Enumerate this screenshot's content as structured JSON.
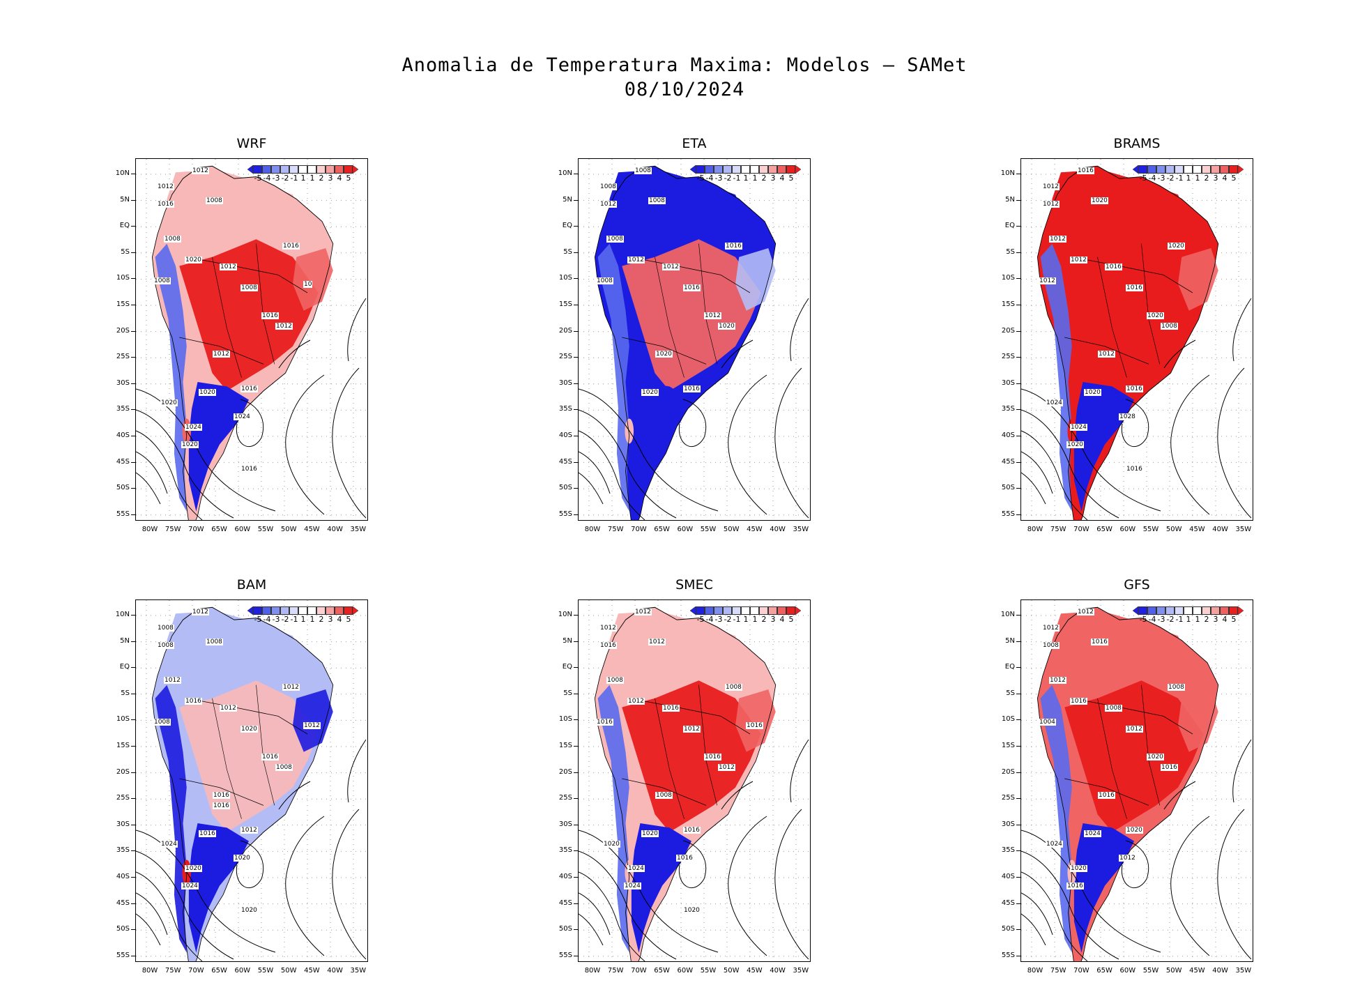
{
  "title": {
    "line1": "Anomalia de Temperatura Maxima: Modelos — SAMet",
    "line2": "08/10/2024"
  },
  "axes": {
    "y_labels": [
      "10N",
      "5N",
      "EQ",
      "5S",
      "10S",
      "15S",
      "20S",
      "25S",
      "30S",
      "35S",
      "40S",
      "45S",
      "50S",
      "55S"
    ],
    "x_labels": [
      "80W",
      "75W",
      "70W",
      "65W",
      "60W",
      "55W",
      "50W",
      "45W",
      "40W",
      "35W"
    ]
  },
  "colorbar": {
    "labels": [
      "-5",
      "-4",
      "-3",
      "-2",
      "-1",
      "1",
      "1",
      "2",
      "3",
      "4",
      "5"
    ],
    "colors": [
      "#2020e0",
      "#5060e8",
      "#8090f0",
      "#b0b8f6",
      "#d8dcfa",
      "#ffffff",
      "#ffffff",
      "#fad0d0",
      "#f6a0a0",
      "#f06060",
      "#e82020"
    ]
  },
  "colors": {
    "red_strong": "#e81c1c",
    "red_mid": "#f06464",
    "red_light": "#f8b8b8",
    "blue_strong": "#1c1ce0",
    "blue_mid": "#5a6aee",
    "blue_light": "#b4bcf6"
  },
  "panels": [
    {
      "name": "WRF",
      "isobars": [
        "1012",
        "1012",
        "1016",
        "1008",
        "1008",
        "1020",
        "1012",
        "1008",
        "1016",
        "1008",
        "1012",
        "1012",
        "1016",
        "1016",
        "1020",
        "1024",
        "1020",
        "1024",
        "1020",
        "1016",
        "10"
      ]
    },
    {
      "name": "ETA",
      "isobars": [
        "1008",
        "1008",
        "1012",
        "1008",
        "1008",
        "1012",
        "1012",
        "1008",
        "1016",
        "1016",
        "1020",
        "1020",
        "1016",
        "1012",
        "1020"
      ]
    },
    {
      "name": "BRAMS",
      "isobars": [
        "1016",
        "1012",
        "1012",
        "1020",
        "1012",
        "1012",
        "1016",
        "1012",
        "1020",
        "1016",
        "1008",
        "1012",
        "1016",
        "1020",
        "1020",
        "1024",
        "1024",
        "1028",
        "1020",
        "1016"
      ]
    },
    {
      "name": "BAM",
      "isobars": [
        "1012",
        "1008",
        "1008",
        "1008",
        "1012",
        "1016",
        "1012",
        "1008",
        "1012",
        "1020",
        "1008",
        "1016",
        "1012",
        "1016",
        "1016",
        "1020",
        "1024",
        "1020",
        "1024",
        "1020",
        "1012",
        "1016"
      ]
    },
    {
      "name": "SMEC",
      "isobars": [
        "1012",
        "1012",
        "1016",
        "1012",
        "1008",
        "1012",
        "1016",
        "1016",
        "1008",
        "1012",
        "1012",
        "1008",
        "1016",
        "1016",
        "1020",
        "1024",
        "1020",
        "1016",
        "1024",
        "1020",
        "1016"
      ]
    },
    {
      "name": "GFS",
      "isobars": [
        "1012",
        "1012",
        "1008",
        "1016",
        "1012",
        "1016",
        "1008",
        "1004",
        "1008",
        "1012",
        "1016",
        "1016",
        "1020",
        "1020",
        "1024",
        "1020",
        "1024",
        "1012",
        "1016"
      ]
    }
  ]
}
